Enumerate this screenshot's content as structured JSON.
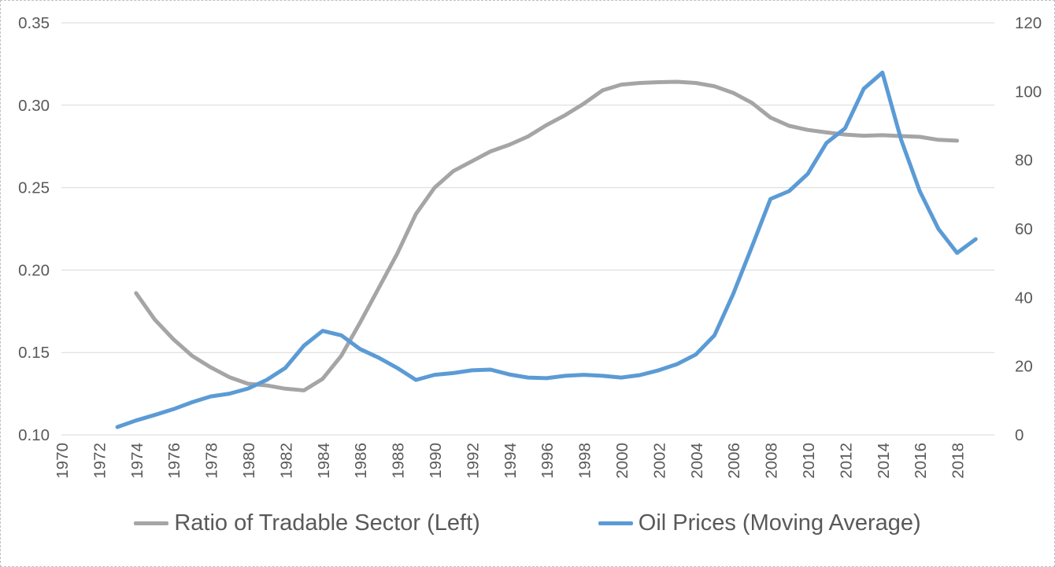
{
  "chart_data": {
    "type": "line",
    "title": "",
    "grid": true,
    "legend_position": "bottom",
    "x_axis": {
      "xlim": [
        1970,
        2020
      ],
      "ticks": [
        "1970",
        "1972",
        "1974",
        "1976",
        "1978",
        "1980",
        "1982",
        "1984",
        "1986",
        "1988",
        "1990",
        "1992",
        "1994",
        "1996",
        "1998",
        "2000",
        "2002",
        "2004",
        "2006",
        "2008",
        "2010",
        "2012",
        "2014",
        "2016",
        "2018"
      ]
    },
    "left_axis": {
      "ylim": [
        0.1,
        0.35
      ],
      "ticks": [
        "0.35",
        "0.30",
        "0.25",
        "0.20",
        "0.15",
        "0.10"
      ]
    },
    "right_axis": {
      "ylim": [
        0,
        120
      ],
      "ticks": [
        "120",
        "100",
        "80",
        "60",
        "40",
        "20",
        "0"
      ]
    },
    "series": [
      {
        "name": "Ratio of Tradable Sector (Left)",
        "axis": "left",
        "color": "#a5a5a5",
        "years": [
          1974,
          1975,
          1976,
          1977,
          1978,
          1979,
          1980,
          1981,
          1982,
          1983,
          1984,
          1985,
          1986,
          1987,
          1988,
          1989,
          1990,
          1991,
          1992,
          1993,
          1994,
          1995,
          1996,
          1997,
          1998,
          1999,
          2000,
          2001,
          2002,
          2003,
          2004,
          2005,
          2006,
          2007,
          2008,
          2009,
          2010,
          2011,
          2012,
          2013,
          2014,
          2015,
          2016,
          2017,
          2018
        ],
        "values": [
          0.186,
          0.17,
          0.158,
          0.148,
          0.141,
          0.135,
          0.131,
          0.13,
          0.128,
          0.127,
          0.134,
          0.148,
          0.168,
          0.189,
          0.21,
          0.234,
          0.25,
          0.26,
          0.266,
          0.272,
          0.276,
          0.281,
          0.288,
          0.294,
          0.301,
          0.309,
          0.3125,
          0.3135,
          0.314,
          0.3142,
          0.3135,
          0.3115,
          0.3075,
          0.3015,
          0.2925,
          0.2875,
          0.285,
          0.2835,
          0.2822,
          0.2815,
          0.2818,
          0.2813,
          0.2808,
          0.279,
          0.2785
        ]
      },
      {
        "name": "Oil Prices (Moving Average)",
        "axis": "right",
        "color": "#5b9bd5",
        "years": [
          1973,
          1974,
          1975,
          1976,
          1977,
          1978,
          1979,
          1980,
          1981,
          1982,
          1983,
          1984,
          1985,
          1986,
          1987,
          1988,
          1989,
          1990,
          1991,
          1992,
          1993,
          1994,
          1995,
          1996,
          1997,
          1998,
          1999,
          2000,
          2001,
          2002,
          2003,
          2004,
          2005,
          2006,
          2007,
          2008,
          2009,
          2010,
          2011,
          2012,
          2013,
          2014,
          2015,
          2016,
          2017,
          2018,
          2019
        ],
        "values": [
          2.3,
          4.2,
          5.8,
          7.5,
          9.5,
          11.2,
          12.0,
          13.5,
          16.0,
          19.5,
          26.0,
          30.3,
          29.0,
          25.0,
          22.5,
          19.5,
          16.0,
          17.5,
          18.0,
          18.8,
          19.0,
          17.6,
          16.7,
          16.5,
          17.2,
          17.5,
          17.2,
          16.7,
          17.4,
          18.8,
          20.6,
          23.4,
          29.0,
          41.0,
          54.7,
          68.7,
          71.0,
          76.0,
          85.0,
          89.3,
          100.8,
          105.5,
          86.0,
          71.0,
          60.0,
          53.0,
          57.0
        ]
      }
    ],
    "colors": {
      "text": "#595959",
      "gridline": "#d9d9d9",
      "ratio_series": "#a5a5a5",
      "oil_series": "#5b9bd5"
    }
  }
}
